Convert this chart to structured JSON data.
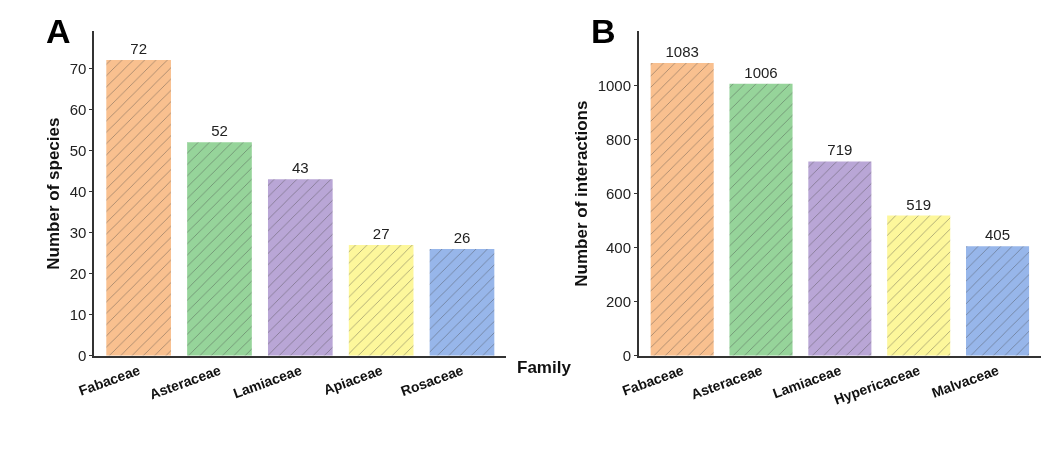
{
  "chart_data": [
    {
      "type": "bar",
      "title": "A",
      "xlabel": "Family",
      "ylabel": "Number of species",
      "categories": [
        "Fabaceae",
        "Asteraceae",
        "Lamiaceae",
        "Apiaceae",
        "Rosaceae"
      ],
      "values": [
        72,
        52,
        43,
        27,
        26
      ],
      "colors": [
        "#f9c08f",
        "#96d49a",
        "#b9a6d6",
        "#fdf79b",
        "#97b6ea"
      ],
      "ylim": [
        0,
        79
      ],
      "yticks": [
        0,
        10,
        20,
        30,
        40,
        50,
        60,
        70
      ],
      "data_labels": true
    },
    {
      "type": "bar",
      "title": "B",
      "ylabel": "Number of interactions",
      "categories": [
        "Fabaceae",
        "Asteraceae",
        "Lamiaceae",
        "Hypericaceae",
        "Malvaceae"
      ],
      "values": [
        1083,
        1006,
        719,
        519,
        405
      ],
      "colors": [
        "#f9c08f",
        "#96d49a",
        "#b9a6d6",
        "#fdf79b",
        "#97b6ea"
      ],
      "ylim": [
        0,
        1200
      ],
      "yticks": [
        0,
        200,
        400,
        600,
        800,
        1000
      ],
      "data_labels": true
    }
  ]
}
